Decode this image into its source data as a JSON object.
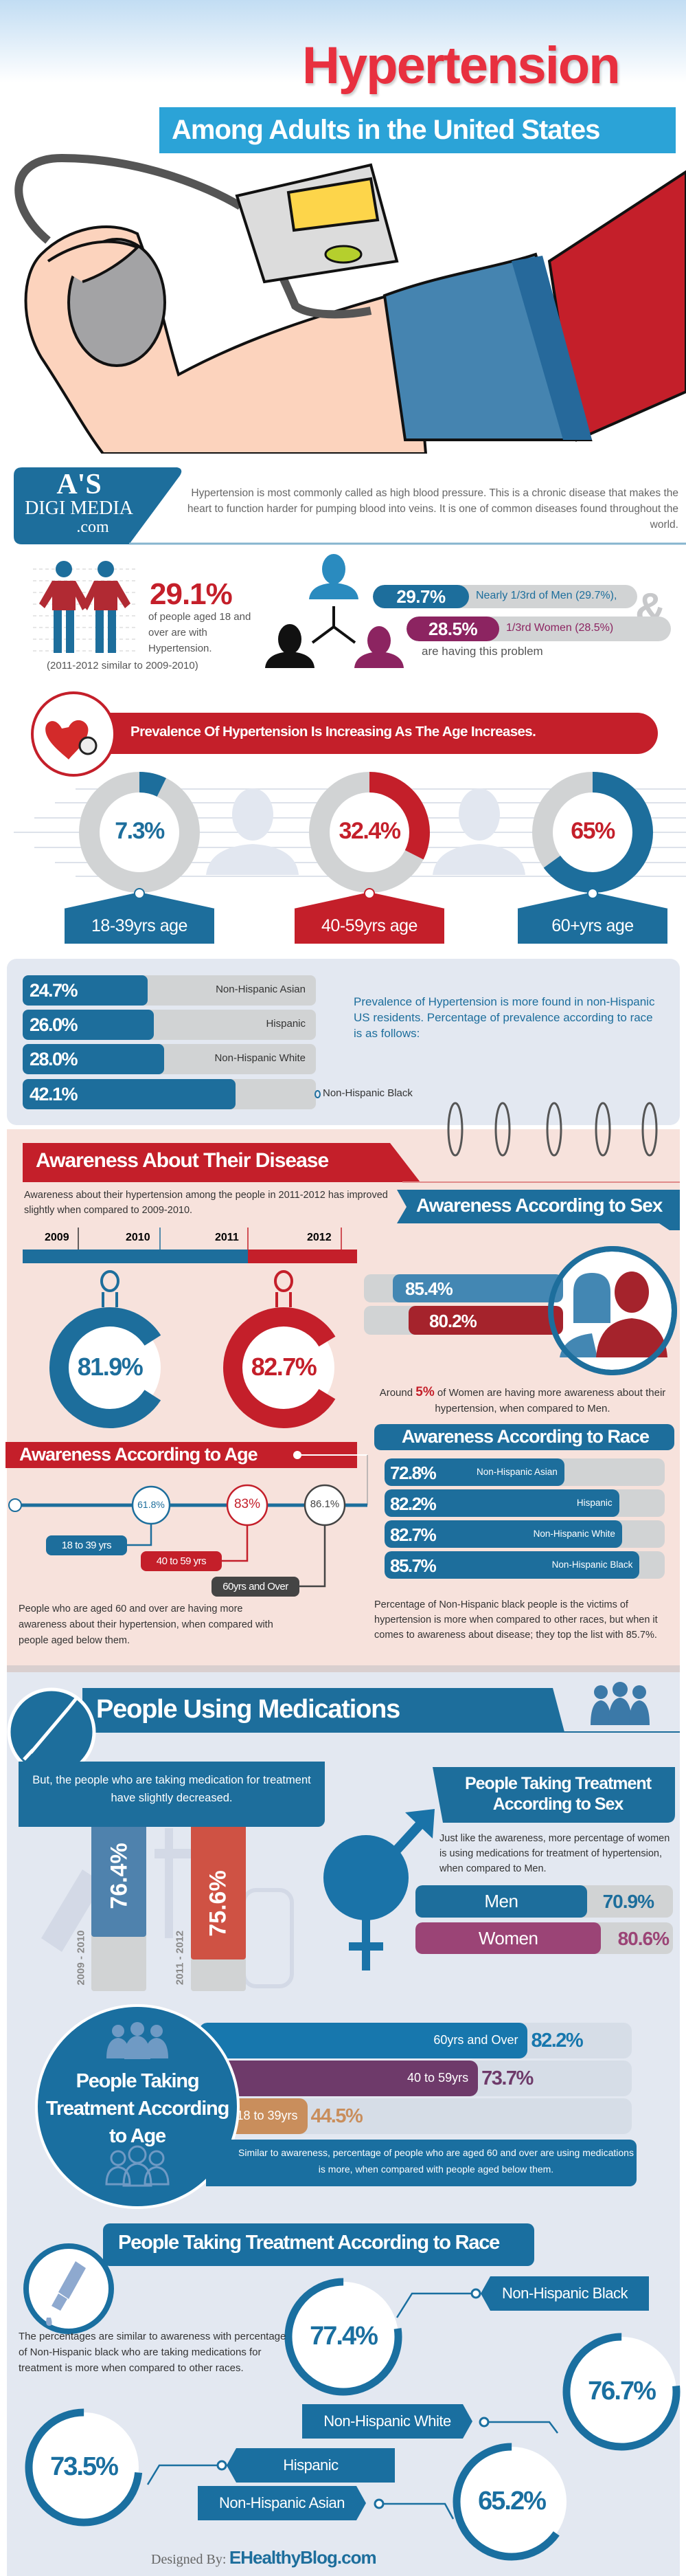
{
  "colors": {
    "blue": "#1d6e9c",
    "red": "#c41f2a",
    "title_red": "#e8303f",
    "light_blue": "#2ba3d7",
    "purple": "#8c2461",
    "gray_bar": "#d1d3d4",
    "pink_bg": "#f7e2dc",
    "panel_bg": "#e3e8f1"
  },
  "header": {
    "title": "Hypertension",
    "subtitle": "Among Adults in the United States"
  },
  "intro": {
    "logo": {
      "line1": "A'S",
      "line2": "DIGI MEDIA",
      "line3": ".com"
    },
    "text": "Hypertension is most commonly called as high blood pressure. This is a chronic disease that makes the heart to function harder for pumping blood into veins. It is one of common diseases found throughout the world."
  },
  "overview": {
    "percent": "29.1%",
    "desc": "of people aged 18 and over are with Hypertension.",
    "note": "(2011-2012 similar to 2009-2010)",
    "men": {
      "value": "29.7%",
      "label": "Nearly 1/3rd of Men (29.7%),"
    },
    "women": {
      "value": "28.5%",
      "label": "1/3rd Women (28.5%)"
    },
    "ampersand": "&",
    "footer": "are having this problem"
  },
  "prevalence_age": {
    "title": "Prevalence Of Hypertension Is Increasing As The Age Increases.",
    "items": [
      {
        "value": 7.3,
        "label": "7.3%",
        "age": "18-39yrs age",
        "color": "#1d6e9c"
      },
      {
        "value": 32.4,
        "label": "32.4%",
        "age": "40-59yrs age",
        "color": "#c41f2a"
      },
      {
        "value": 65,
        "label": "65%",
        "age": "60+yrs age",
        "color": "#1d6e9c"
      }
    ]
  },
  "prevalence_race": {
    "items": [
      {
        "value": 24.7,
        "label": "24.7%",
        "race": "Non-Hispanic Asian"
      },
      {
        "value": 26.0,
        "label": "26.0%",
        "race": "Hispanic"
      },
      {
        "value": 28.0,
        "label": "28.0%",
        "race": "Non-Hispanic White"
      },
      {
        "value": 42.1,
        "label": "42.1%",
        "race": "Non-Hispanic Black"
      }
    ],
    "text": "Prevalence of Hypertension is more found in non-Hispanic US residents. Percentage of prevalence according to race is as follows:"
  },
  "awareness": {
    "title": "Awareness About Their Disease",
    "text": "Awareness about their hypertension among the people in 2011-2012 has improved slightly when compared to 2009-2010.",
    "years": [
      "2009",
      "2010",
      "2011",
      "2012"
    ],
    "rings": [
      {
        "value": 81.9,
        "label": "81.9%"
      },
      {
        "value": 82.7,
        "label": "82.7%"
      }
    ]
  },
  "awareness_sex": {
    "title": "Awareness According to Sex",
    "bars": [
      {
        "value": 85.4,
        "label": "85.4%"
      },
      {
        "value": 80.2,
        "label": "80.2%"
      }
    ],
    "note_pre": "Around ",
    "note_highlight": "5%",
    "note_post": " of Women are having more awareness about their hypertension, when compared to Men."
  },
  "awareness_age": {
    "title": "Awareness According to Age",
    "items": [
      {
        "value": "61.8%",
        "label": "18 to 39 yrs"
      },
      {
        "value": "83%",
        "label": "40 to 59 yrs"
      },
      {
        "value": "86.1%",
        "label": "60yrs and Over"
      }
    ],
    "text": "People who are aged 60 and over are having more awareness about their hypertension, when compared with people aged below them."
  },
  "awareness_race": {
    "title": "Awareness According to Race",
    "items": [
      {
        "value": 72.8,
        "label": "72.8%",
        "race": "Non-Hispanic Asian"
      },
      {
        "value": 82.2,
        "label": "82.2%",
        "race": "Hispanic"
      },
      {
        "value": 82.7,
        "label": "82.7%",
        "race": "Non-Hispanic White"
      },
      {
        "value": 85.7,
        "label": "85.7%",
        "race": "Non-Hispanic Black"
      }
    ],
    "text": "Percentage of Non-Hispanic black people is the victims of hypertension is more when compared to other races, but when it comes to awareness about disease; they top the list with 85.7%."
  },
  "medications": {
    "title": "People Using Medications",
    "text": "But, the people who are taking medication for treatment have slightly decreased.",
    "bars": [
      {
        "value": "76.4%",
        "period": "2009 - 2010"
      },
      {
        "value": "75.6%",
        "period": "2011 - 2012"
      }
    ]
  },
  "treatment_sex": {
    "title": "People Taking Treatment According to Sex",
    "text": "Just like the awareness, more percentage of women is using medications for treatment of hypertension, when compared to Men.",
    "items": [
      {
        "label": "Men",
        "value": 70.9,
        "text": "70.9%"
      },
      {
        "label": "Women",
        "value": 80.6,
        "text": "80.6%"
      }
    ]
  },
  "treatment_age": {
    "title": "People Taking Treatment According to Age",
    "items": [
      {
        "label": "60yrs and Over",
        "value": 82.2,
        "text": "82.2%"
      },
      {
        "label": "40 to 59yrs",
        "value": 73.7,
        "text": "73.7%"
      },
      {
        "label": "18 to 39yrs",
        "value": 44.5,
        "text": "44.5%"
      }
    ],
    "text": "Similar to awareness, percentage of people who are aged 60 and over are using medications is more, when compared with people aged below them."
  },
  "treatment_race": {
    "title": "People Taking Treatment According to Race",
    "text": "The percentages are similar to awareness with percentage of Non-Hispanic black who are taking medications for treatment is more when compared to other races.",
    "items": [
      {
        "race": "Non-Hispanic Black",
        "value": 77.4,
        "text": "77.4%"
      },
      {
        "race": "Non-Hispanic White",
        "value": 76.7,
        "text": "76.7%"
      },
      {
        "race": "Hispanic",
        "value": 73.5,
        "text": "73.5%"
      },
      {
        "race": "Non-Hispanic Asian",
        "value": 65.2,
        "text": "65.2%"
      }
    ]
  },
  "footer": {
    "designed_by": "Designed By:",
    "site": "EHealthyBlog.com"
  }
}
